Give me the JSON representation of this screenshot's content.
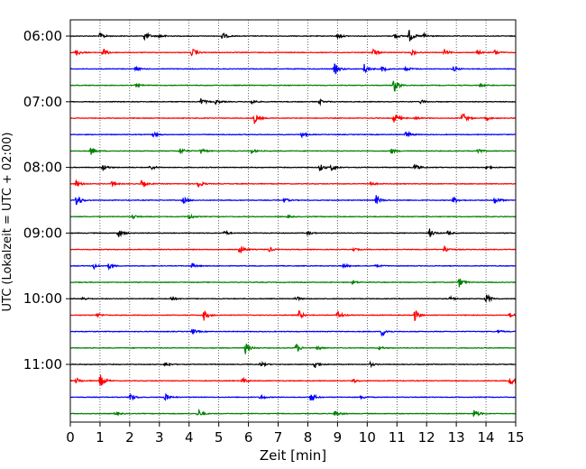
{
  "chart_data": {
    "type": "line",
    "subtype": "helicorder",
    "xlabel": "Zeit  [min]",
    "ylabel": "UTC (Lokalzeit = UTC + 02:00)",
    "xlim": [
      0,
      15
    ],
    "x_ticks": [
      "0",
      "1",
      "2",
      "3",
      "4",
      "5",
      "6",
      "7",
      "8",
      "9",
      "10",
      "11",
      "12",
      "13",
      "14",
      "15"
    ],
    "y_tick_labels": [
      "06:00",
      "07:00",
      "08:00",
      "09:00",
      "10:00",
      "11:00"
    ],
    "y_tick_rows": [
      0,
      4,
      8,
      12,
      16,
      20
    ],
    "grid": "vertical dotted lines at each minute",
    "trace_colors": [
      "#000000",
      "#ff0000",
      "#0000ff",
      "#008000"
    ],
    "rows": [
      {
        "time": "06:00",
        "color": "#000000",
        "bursts": [
          [
            1.0,
            0.7
          ],
          [
            2.5,
            1.0
          ],
          [
            3.0,
            0.5
          ],
          [
            5.1,
            0.9
          ],
          [
            9.0,
            0.5
          ],
          [
            10.9,
            0.7
          ],
          [
            11.4,
            1.4
          ],
          [
            11.9,
            0.6
          ]
        ]
      },
      {
        "time": "06:15",
        "color": "#ff0000",
        "bursts": [
          [
            0.2,
            0.7
          ],
          [
            1.1,
            1.0
          ],
          [
            4.1,
            0.9
          ],
          [
            10.2,
            0.7
          ],
          [
            11.5,
            0.6
          ],
          [
            12.6,
            0.5
          ],
          [
            13.7,
            0.5
          ],
          [
            14.3,
            0.6
          ]
        ]
      },
      {
        "time": "06:30",
        "color": "#0000ff",
        "bursts": [
          [
            2.2,
            0.5
          ],
          [
            8.9,
            1.2
          ],
          [
            9.9,
            1.1
          ],
          [
            10.5,
            0.6
          ],
          [
            11.3,
            0.5
          ],
          [
            12.9,
            0.5
          ]
        ]
      },
      {
        "time": "06:45",
        "color": "#008000",
        "bursts": [
          [
            2.2,
            0.4
          ],
          [
            10.9,
            1.5
          ],
          [
            13.8,
            0.4
          ]
        ]
      },
      {
        "time": "07:00",
        "color": "#000000",
        "bursts": [
          [
            4.4,
            0.7
          ],
          [
            4.9,
            0.5
          ],
          [
            6.1,
            0.5
          ],
          [
            8.4,
            0.5
          ],
          [
            11.8,
            0.4
          ]
        ]
      },
      {
        "time": "07:15",
        "color": "#ff0000",
        "bursts": [
          [
            6.2,
            1.1
          ],
          [
            10.9,
            1.2
          ],
          [
            11.6,
            0.4
          ],
          [
            13.2,
            1.2
          ],
          [
            14.0,
            0.4
          ]
        ]
      },
      {
        "time": "07:30",
        "color": "#0000ff",
        "bursts": [
          [
            2.8,
            0.5
          ],
          [
            7.8,
            0.5
          ],
          [
            11.3,
            0.9
          ]
        ]
      },
      {
        "time": "07:45",
        "color": "#008000",
        "bursts": [
          [
            0.7,
            0.9
          ],
          [
            3.7,
            0.7
          ],
          [
            4.4,
            0.6
          ],
          [
            6.1,
            0.5
          ],
          [
            10.8,
            0.6
          ],
          [
            13.7,
            0.6
          ]
        ]
      },
      {
        "time": "08:00",
        "color": "#000000",
        "bursts": [
          [
            1.1,
            0.7
          ],
          [
            2.7,
            0.6
          ],
          [
            8.4,
            0.8
          ],
          [
            8.8,
            0.7
          ],
          [
            11.6,
            0.7
          ],
          [
            14.0,
            0.4
          ]
        ]
      },
      {
        "time": "08:15",
        "color": "#ff0000",
        "bursts": [
          [
            0.2,
            0.8
          ],
          [
            1.4,
            0.5
          ],
          [
            2.4,
            0.8
          ],
          [
            4.3,
            0.8
          ],
          [
            10.1,
            0.4
          ]
        ]
      },
      {
        "time": "08:30",
        "color": "#0000ff",
        "bursts": [
          [
            0.2,
            1.5
          ],
          [
            3.8,
            0.7
          ],
          [
            7.2,
            0.5
          ],
          [
            10.3,
            1.0
          ],
          [
            12.9,
            0.8
          ],
          [
            14.3,
            0.9
          ]
        ]
      },
      {
        "time": "08:45",
        "color": "#008000",
        "bursts": [
          [
            2.1,
            0.4
          ],
          [
            4.0,
            0.6
          ],
          [
            7.3,
            0.4
          ]
        ]
      },
      {
        "time": "09:00",
        "color": "#000000",
        "bursts": [
          [
            1.6,
            1.0
          ],
          [
            5.2,
            0.5
          ],
          [
            8.0,
            0.4
          ],
          [
            12.1,
            0.9
          ],
          [
            12.7,
            0.4
          ]
        ]
      },
      {
        "time": "09:15",
        "color": "#ff0000",
        "bursts": [
          [
            5.7,
            1.0
          ],
          [
            6.7,
            0.5
          ],
          [
            9.5,
            0.4
          ],
          [
            12.6,
            0.8
          ]
        ]
      },
      {
        "time": "09:30",
        "color": "#0000ff",
        "bursts": [
          [
            0.8,
            0.6
          ],
          [
            1.3,
            0.6
          ],
          [
            4.1,
            0.5
          ],
          [
            9.2,
            0.5
          ],
          [
            10.3,
            0.4
          ]
        ]
      },
      {
        "time": "09:45",
        "color": "#008000",
        "bursts": [
          [
            9.5,
            0.4
          ],
          [
            13.1,
            1.0
          ]
        ]
      },
      {
        "time": "10:00",
        "color": "#000000",
        "bursts": [
          [
            0.4,
            0.4
          ],
          [
            3.4,
            0.5
          ],
          [
            7.6,
            0.5
          ],
          [
            12.8,
            0.5
          ],
          [
            14.0,
            1.1
          ]
        ]
      },
      {
        "time": "10:15",
        "color": "#ff0000",
        "bursts": [
          [
            0.9,
            0.5
          ],
          [
            4.5,
            1.1
          ],
          [
            7.7,
            0.9
          ],
          [
            9.0,
            0.9
          ],
          [
            11.6,
            1.2
          ],
          [
            14.8,
            0.5
          ]
        ]
      },
      {
        "time": "10:30",
        "color": "#0000ff",
        "bursts": [
          [
            4.1,
            0.6
          ],
          [
            10.5,
            1.1
          ],
          [
            14.4,
            0.4
          ]
        ]
      },
      {
        "time": "10:45",
        "color": "#008000",
        "bursts": [
          [
            5.9,
            1.2
          ],
          [
            7.6,
            1.0
          ],
          [
            8.3,
            0.5
          ],
          [
            10.4,
            0.4
          ]
        ]
      },
      {
        "time": "11:00",
        "color": "#000000",
        "bursts": [
          [
            3.2,
            0.5
          ],
          [
            6.4,
            0.5
          ],
          [
            8.2,
            1.1
          ],
          [
            10.1,
            0.4
          ]
        ]
      },
      {
        "time": "11:15",
        "color": "#ff0000",
        "bursts": [
          [
            0.2,
            0.6
          ],
          [
            1.0,
            1.4
          ],
          [
            5.8,
            0.6
          ],
          [
            9.5,
            0.5
          ],
          [
            14.8,
            1.0
          ]
        ]
      },
      {
        "time": "11:30",
        "color": "#0000ff",
        "bursts": [
          [
            2.0,
            1.0
          ],
          [
            3.2,
            0.8
          ],
          [
            6.4,
            0.5
          ],
          [
            8.1,
            1.0
          ],
          [
            9.8,
            0.4
          ]
        ]
      },
      {
        "time": "11:45",
        "color": "#008000",
        "bursts": [
          [
            1.5,
            0.5
          ],
          [
            4.3,
            0.9
          ],
          [
            8.9,
            0.8
          ],
          [
            13.6,
            0.9
          ]
        ]
      }
    ]
  }
}
